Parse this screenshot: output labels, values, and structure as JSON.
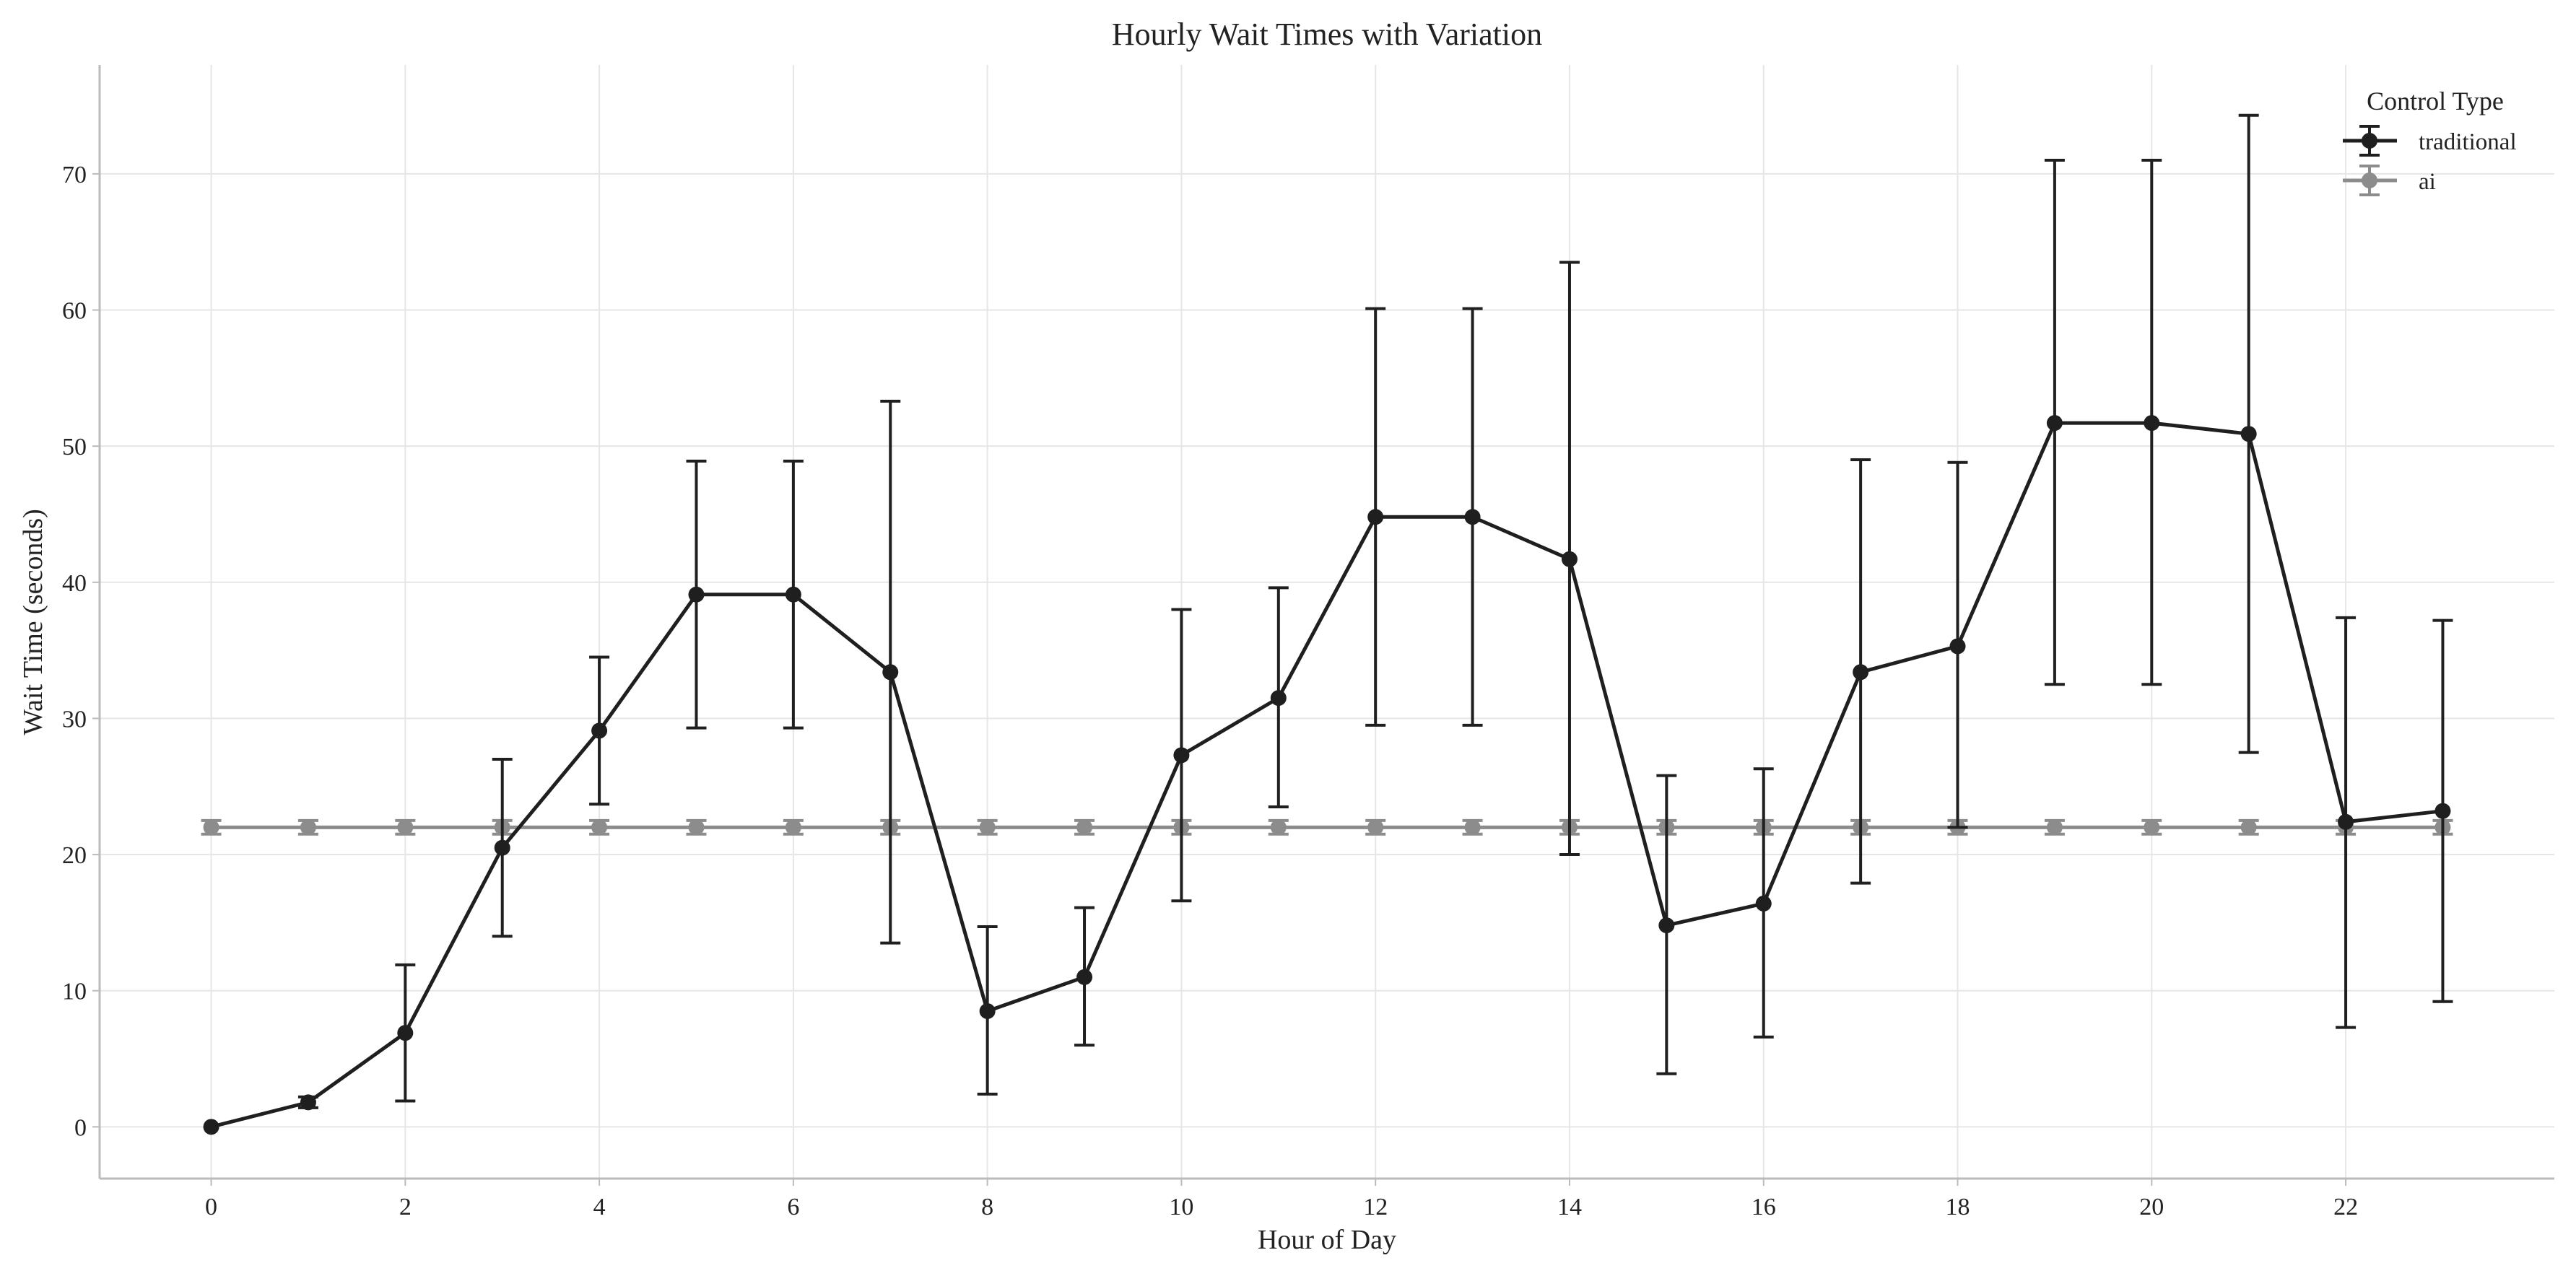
{
  "chart_data": {
    "type": "line",
    "title": "Hourly Wait Times with Variation",
    "xlabel": "Hour of Day",
    "ylabel": "Wait Time (seconds)",
    "xlim": [
      -1.15,
      24.15
    ],
    "ylim": [
      -3.8,
      78
    ],
    "xticks": [
      0,
      2,
      4,
      6,
      8,
      10,
      12,
      14,
      16,
      18,
      20,
      22
    ],
    "yticks": [
      0,
      10,
      20,
      30,
      40,
      50,
      60,
      70
    ],
    "grid": true,
    "legend": {
      "title": "Control Type",
      "position": "top-right"
    },
    "x": [
      0,
      1,
      2,
      3,
      4,
      5,
      6,
      7,
      8,
      9,
      10,
      11,
      12,
      13,
      14,
      15,
      16,
      17,
      18,
      19,
      20,
      21,
      22,
      23
    ],
    "series": [
      {
        "name": "traditional",
        "color": "#1f1f1f",
        "values": [
          0,
          1.8,
          6.9,
          20.5,
          29.1,
          39.1,
          39.1,
          33.4,
          8.5,
          11.0,
          27.3,
          31.5,
          44.8,
          44.8,
          41.7,
          14.8,
          16.4,
          33.4,
          35.3,
          51.7,
          51.7,
          50.9,
          22.4,
          23.2
        ],
        "lower": [
          0,
          1.4,
          1.9,
          14.0,
          23.7,
          29.3,
          29.3,
          13.5,
          2.4,
          6.0,
          16.6,
          23.5,
          29.5,
          29.5,
          20.0,
          3.9,
          6.6,
          17.9,
          22.0,
          32.5,
          32.5,
          27.5,
          7.3,
          9.2
        ],
        "upper": [
          0,
          2.2,
          11.9,
          27.0,
          34.5,
          48.9,
          48.9,
          53.3,
          14.7,
          16.1,
          38.0,
          39.6,
          60.1,
          60.1,
          63.5,
          25.8,
          26.3,
          49.0,
          48.8,
          71.0,
          71.0,
          74.3,
          37.4,
          37.2
        ]
      },
      {
        "name": "ai",
        "color": "#8c8c8c",
        "values": [
          22,
          22,
          22,
          22,
          22,
          22,
          22,
          22,
          22,
          22,
          22,
          22,
          22,
          22,
          22,
          22,
          22,
          22,
          22,
          22,
          22,
          22,
          22,
          22
        ],
        "lower": [
          21.5,
          21.5,
          21.5,
          21.5,
          21.5,
          21.5,
          21.5,
          21.5,
          21.5,
          21.5,
          21.5,
          21.5,
          21.5,
          21.5,
          21.5,
          21.5,
          21.5,
          21.5,
          21.5,
          21.5,
          21.5,
          21.5,
          21.5,
          21.5
        ],
        "upper": [
          22.5,
          22.5,
          22.5,
          22.5,
          22.5,
          22.5,
          22.5,
          22.5,
          22.5,
          22.5,
          22.5,
          22.5,
          22.5,
          22.5,
          22.5,
          22.5,
          22.5,
          22.5,
          22.5,
          22.5,
          22.5,
          22.5,
          22.5,
          22.5
        ]
      }
    ]
  }
}
